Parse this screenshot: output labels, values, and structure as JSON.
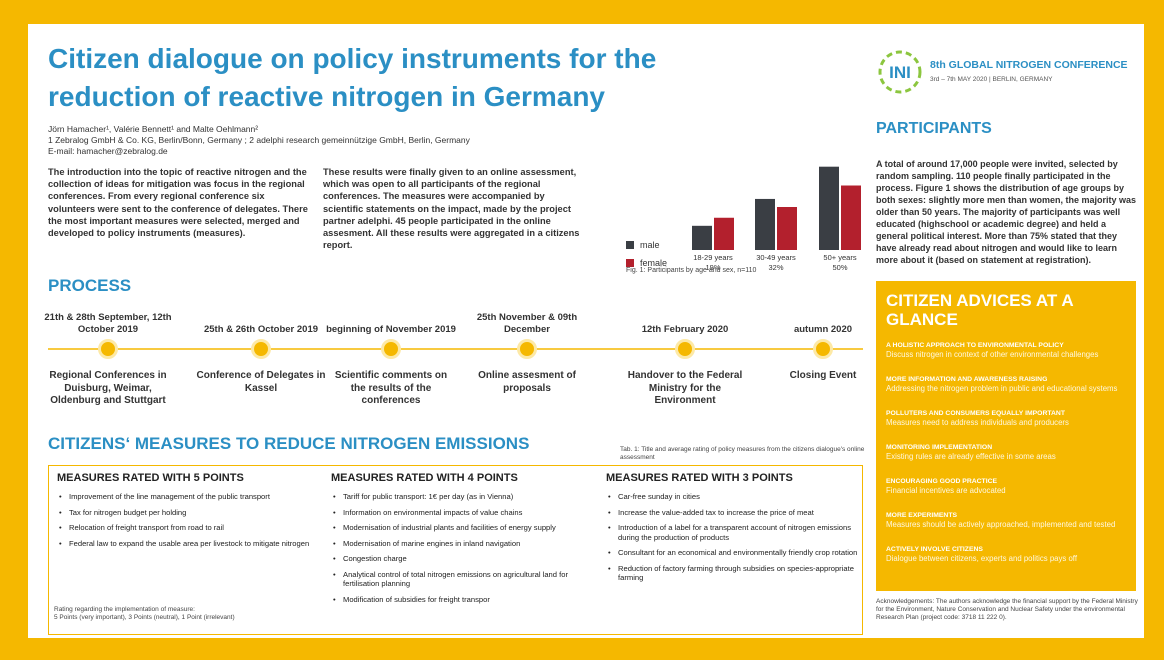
{
  "header": {
    "title_lines": [
      "Citizen dialogue on policy instruments for the",
      "reduction of reactive nitrogen in Germany"
    ],
    "authors": "Jörn Hamacher¹, Valérie Bennett¹ and Malte Oehlmann²",
    "affiliations": "1 Zebralog GmbH & Co. KG, Berlin/Bonn, Germany ; 2 adelphi research gemeinnützige GmbH, Berlin, Germany",
    "email": "E-mail: hamacher@zebralog.de"
  },
  "conference": {
    "logo": "INI",
    "name": "8th GLOBAL NITROGEN CONFERENCE",
    "dates": "3rd – 7th MAY 2020 | BERLIN, GERMANY"
  },
  "intro": [
    "The introduction into the topic of reactive nitrogen and the collection of ideas for mitigation was focus in the regional conferences. From every regional conference six volunteers were sent to the conference of delegates. There the most important measures were selected, merged and developed to policy instruments (measures).",
    "These results were finally given to an online assessment, which was open to all participants of the regional conferences. The measures were accompanied by scientific statements on the impact, made by the project partner adelphi. 45 people participated in the online assesment. All these results were aggregated in a citizens report."
  ],
  "chart_data": {
    "type": "bar",
    "categories": [
      "18-29 years",
      "30-49 years",
      "50+ years"
    ],
    "group_shares": [
      "19%",
      "32%",
      "50%"
    ],
    "series": [
      {
        "name": "male",
        "color": "#3a3e44",
        "values": [
          9,
          19,
          31
        ]
      },
      {
        "name": "female",
        "color": "#b3202d",
        "values": [
          12,
          16,
          24
        ]
      }
    ],
    "ylim": [
      0,
      32
    ],
    "caption": "Fig. 1: Participants by age and sex, n=110"
  },
  "participants": {
    "heading": "PARTICIPANTS",
    "text": "A total of around 17,000 people were invited, selected by random sampling. 110 people finally participated in the process. Figure 1 shows the distribution of age groups by both sexes: slightly more men than women, the majority was older than 50 years. The majority of participants was well educated (highschool or academic degree) and held a general political interest. More than 75% stated that they have already read about nitrogen and would like to learn more about it (based on statement at registration)."
  },
  "process": {
    "heading": "PROCESS",
    "steps": [
      {
        "date": "21th & 28th September, 12th October 2019",
        "label": "Regional Conferences in Duisburg, Weimar, Oldenburg and Stuttgart"
      },
      {
        "date": "25th & 26th October 2019",
        "label": "Conference of Delegates in Kassel"
      },
      {
        "date": "beginning of November 2019",
        "label": "Scientific comments on the results of the conferences"
      },
      {
        "date": "25th November & 09th December",
        "label": "Online assesment of proposals"
      },
      {
        "date": "12th February 2020",
        "label": "Handover to the Federal Ministry for the Environment"
      },
      {
        "date": "autumn 2020",
        "label": "Closing Event"
      }
    ]
  },
  "measures": {
    "heading": "CITIZENS‘ MEASURES TO REDUCE NITROGEN EMISSIONS",
    "caption": "Tab. 1: Title and average rating of policy measures from the citizens dialogue's online assessment",
    "columns": [
      {
        "title": "MEASURES RATED WITH 5 POINTS",
        "items": [
          "Improvement of the line management of the public transport",
          "Tax for nitrogen budget per holding",
          "Relocation of freight transport from road to rail",
          "Federal law to expand the usable area per livestock to mitigate nitrogen"
        ]
      },
      {
        "title": "MEASURES RATED WITH 4 POINTS",
        "items": [
          "Tariff for public transport: 1€ per day (as in Vienna)",
          "Information on environmental impacts of value chains",
          "Modernisation of industrial plants and facilities of energy supply",
          "Modernisation of marine engines in inland navigation",
          "Congestion charge",
          "Analytical control of total nitrogen emissions on agricultural land for fertilisation planning",
          "Modification of subsidies for freight transpor"
        ]
      },
      {
        "title": "MEASURES RATED WITH 3 POINTS",
        "items": [
          "Car-free sunday in cities",
          "Increase the value-added tax to increase the price of meat",
          "Introduction of a label for a transparent account of nitrogen emissions during the production of products",
          "Consultant for an economical and environmentally friendly crop rotation",
          "Reduction of factory farming through subsidies on species-appropriate farming"
        ]
      }
    ],
    "rating_note": [
      "Rating regarding the implementation of measure:",
      "5 Points (very important), 3 Points (neutral), 1 Point (irrelevant)"
    ]
  },
  "advices": {
    "title": "CITIZEN ADVICES AT A GLANCE",
    "items": [
      {
        "heading": "A HOLISTIC APPROACH TO ENVIRONMENTAL POLICY",
        "text": "Discuss nitrogen in context of other environmental challenges"
      },
      {
        "heading": "MORE INFORMATION AND AWARENESS RAISING",
        "text": "Addressing the nitrogen problem in public and educational systems"
      },
      {
        "heading": "POLLUTERS AND CONSUMERS EQUALLY IMPORTANT",
        "text": "Measures need to address individuals and producers"
      },
      {
        "heading": "MONITORING IMPLEMENTATION",
        "text": "Existing rules are already effective in some areas"
      },
      {
        "heading": "ENCOURAGING GOOD PRACTICE",
        "text": "Financial incentives are advocated"
      },
      {
        "heading": "MORE EXPERIMENTS",
        "text": "Measures should be actively approached, implemented and tested"
      },
      {
        "heading": "ACTIVELY INVOLVE CITIZENS",
        "text": "Dialogue between citizens, experts and politics pays off"
      }
    ]
  },
  "acknowledgement": "Acknowledgements: The authors acknowledge the financial support by the Federal Ministry for the Environment, Nature Conservation and Nuclear Safety under the environmental Research Plan (project code: 3718 11 222 0)."
}
